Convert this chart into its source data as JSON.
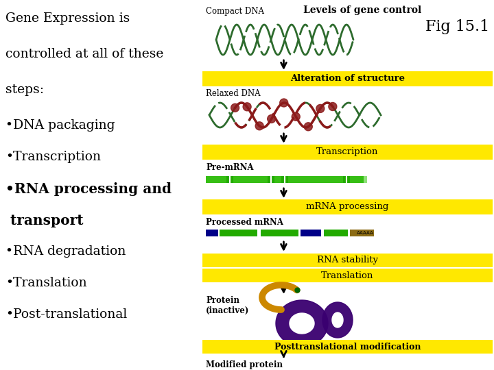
{
  "bg_color": "#ffffff",
  "left_text": {
    "intro": "Gene Expression is\ncontrolled at all of these\nsteps:",
    "bullets": [
      {
        "text": "•DNA packaging",
        "bold": false
      },
      {
        "text": "•Transcription",
        "bold": false
      },
      {
        "text": "•RNA processing and\n transport",
        "bold": true
      },
      {
        "text": "•RNA degradation",
        "bold": false
      },
      {
        "text": "•Translation",
        "bold": false
      },
      {
        "text": "•Post-translational",
        "bold": false
      }
    ]
  },
  "right_panel": {
    "title": "Levels of gene control",
    "fig_label": "Fig 15.1",
    "compact_dna_label": "Compact DNA",
    "relaxed_dna_label": "Relaxed DNA",
    "pre_mrna_label": "Pre-mRNA",
    "processed_mrna_label": "Processed mRNA",
    "protein_inactive_label": "Protein\n(inactive)",
    "modified_protein_label": "Modified protein\n(active)",
    "yellow_color": "#FFE800",
    "bar_labels": [
      "Alteration of structure",
      "Transcription",
      "mRNA processing",
      "RNA stability",
      "Translation",
      "Posttranslational modification"
    ],
    "dna_green": "#2d6b2d",
    "dna_red": "#8b1a1a",
    "mrna_green": "#22aa00",
    "mrna_dark_green": "#006600",
    "mrna_blue": "#000080",
    "mrna_poly_a": "#8b6914",
    "protein_purple": "#3a0070",
    "protein_gold": "#cc8800",
    "dot_red": "#cc2200",
    "dot_orange": "#ee6600"
  }
}
